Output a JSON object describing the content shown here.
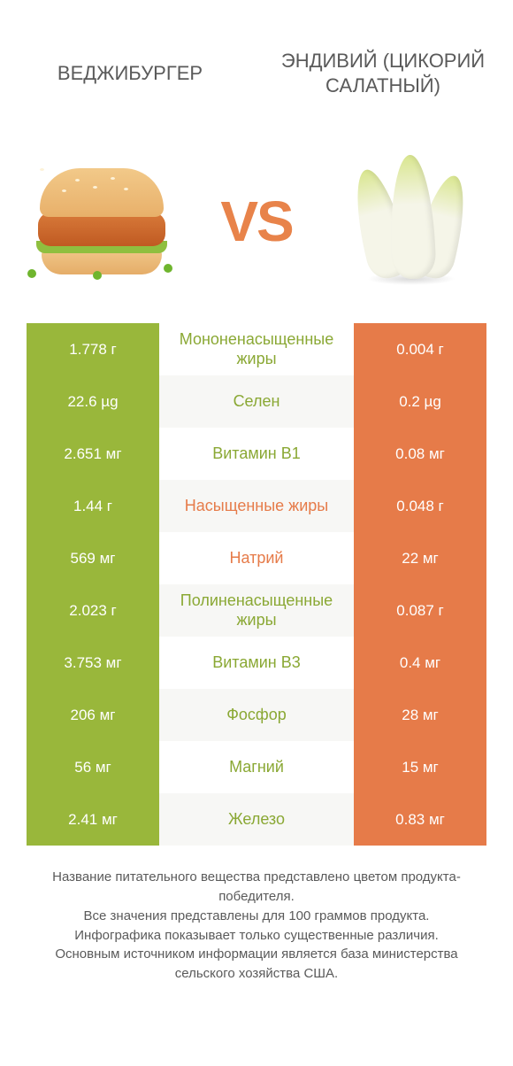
{
  "colors": {
    "green": "#99b73b",
    "orange": "#e67b49",
    "row_alt_bg": "#f7f7f5",
    "row_bg": "#ffffff",
    "text": "#5a5a5a",
    "label_green": "#8aa834",
    "label_orange": "#e67b49"
  },
  "header": {
    "left_title": "ВЕДЖИБУРГЕР",
    "right_title": "ЭНДИВИЙ (ЦИКОРИЙ САЛАТНЫЙ)"
  },
  "vs_label": "VS",
  "rows": [
    {
      "label": "Мононенасыщенные жиры",
      "left": "1.778 г",
      "right": "0.004 г",
      "winner": "left"
    },
    {
      "label": "Селен",
      "left": "22.6 µg",
      "right": "0.2 µg",
      "winner": "left"
    },
    {
      "label": "Витамин B1",
      "left": "2.651 мг",
      "right": "0.08 мг",
      "winner": "left"
    },
    {
      "label": "Насыщенные жиры",
      "left": "1.44 г",
      "right": "0.048 г",
      "winner": "right"
    },
    {
      "label": "Натрий",
      "left": "569 мг",
      "right": "22 мг",
      "winner": "right"
    },
    {
      "label": "Полиненасыщенные жиры",
      "left": "2.023 г",
      "right": "0.087 г",
      "winner": "left"
    },
    {
      "label": "Витамин B3",
      "left": "3.753 мг",
      "right": "0.4 мг",
      "winner": "left"
    },
    {
      "label": "Фосфор",
      "left": "206 мг",
      "right": "28 мг",
      "winner": "left"
    },
    {
      "label": "Магний",
      "left": "56 мг",
      "right": "15 мг",
      "winner": "left"
    },
    {
      "label": "Железо",
      "left": "2.41 мг",
      "right": "0.83 мг",
      "winner": "left"
    }
  ],
  "footer": {
    "line1": "Название питательного вещества представлено цветом продукта-победителя.",
    "line2": "Все значения представлены для 100 граммов продукта.",
    "line3": "Инфографика показывает только существенные различия.",
    "line4": "Основным источником информации является база министерства сельского хозяйства США."
  }
}
